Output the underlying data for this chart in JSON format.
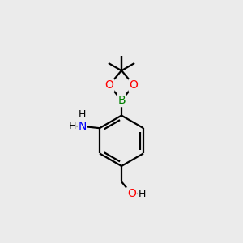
{
  "background_color": "#ebebeb",
  "bond_color": "#000000",
  "atom_colors": {
    "B": "#008000",
    "O": "#ff0000",
    "N": "#0000ff",
    "H": "#000000",
    "C": "#000000"
  },
  "bond_width": 1.6,
  "figsize": [
    3.0,
    3.0
  ],
  "dpi": 100,
  "xlim": [
    0,
    10
  ],
  "ylim": [
    0,
    10
  ]
}
